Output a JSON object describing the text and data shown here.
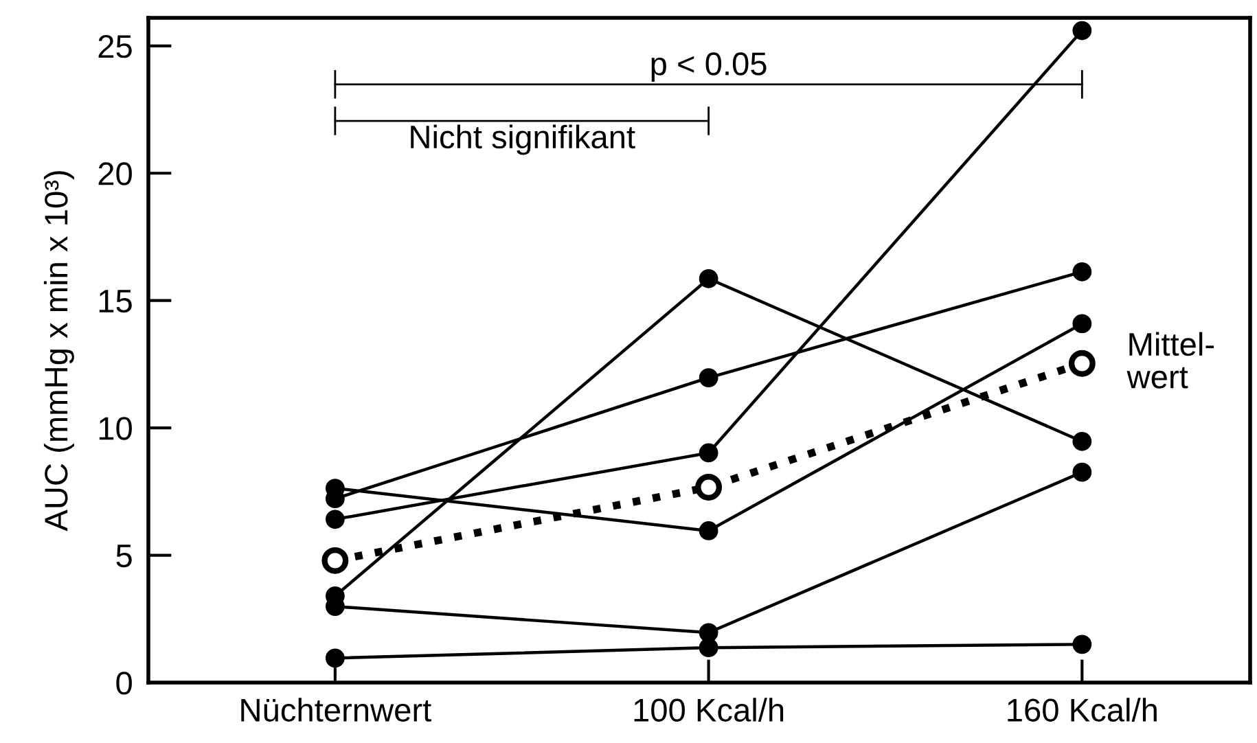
{
  "chart_data": {
    "type": "line",
    "ylabel": "AUC (mmHg x min x 10³)",
    "categories": [
      "Nüchternwert",
      "100 Kcal/h",
      "160 Kcal/h"
    ],
    "series": [
      {
        "color": "#000000",
        "values": [
          7.63,
          5.96,
          14.09
        ]
      },
      {
        "color": "#000000",
        "values": [
          7.22,
          11.97,
          16.13
        ]
      },
      {
        "color": "#000000",
        "values": [
          6.41,
          9.02,
          25.6
        ]
      },
      {
        "color": "#000000",
        "values": [
          3.4,
          15.86,
          9.47
        ]
      },
      {
        "color": "#000000",
        "values": [
          2.99,
          1.96,
          8.26
        ]
      },
      {
        "color": "#000000",
        "values": [
          0.96,
          1.37,
          1.5
        ]
      },
      {
        "name": "Mittel-\nwert",
        "color": "#000000",
        "values": [
          4.79,
          7.67,
          12.53
        ],
        "line_style": "dotted"
      }
    ],
    "ylim": [
      0,
      26.1
    ],
    "yticks": [
      0,
      5,
      10,
      15,
      20,
      25
    ],
    "marker": "circle",
    "line_style": "solid",
    "grid": false,
    "legend": false,
    "annotations": [
      "p < 0.05",
      "Nicht signifikant"
    ]
  }
}
